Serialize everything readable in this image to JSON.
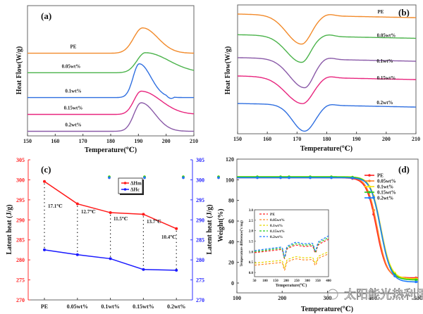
{
  "chart_data": [
    {
      "panel": "(a)",
      "type": "line",
      "title": "",
      "xlabel": "Temperature(℃)",
      "ylabel": "Heat Flow(W/g)",
      "xlim": [
        150,
        210
      ],
      "xticks": [
        150,
        160,
        170,
        180,
        190,
        200,
        210
      ],
      "series": [
        {
          "name": "PE",
          "color": "#f28a2a",
          "baseline": 0.88,
          "peaks": [
            {
              "x": 191.5,
              "h": 0.12,
              "wl": 3.2,
              "wr": 5.5
            }
          ]
        },
        {
          "name": "0.05wt%",
          "color": "#4bb34b",
          "baseline": 0.66,
          "peaks": [
            {
              "x": 192.5,
              "h": 0.095,
              "wl": 3.0,
              "wr": 8.5
            }
          ]
        },
        {
          "name": "0.1wt%",
          "color": "#2f6fe0",
          "baseline": 0.38,
          "peaks": [
            {
              "x": 190.3,
              "h": 0.16,
              "wl": 2.2,
              "wr": 4.2
            }
          ]
        },
        {
          "name": "0.15wt%",
          "color": "#e8257e",
          "baseline": 0.19,
          "peaks": [
            {
              "x": 191.0,
              "h": 0.11,
              "wl": 2.6,
              "wr": 7.0
            }
          ]
        },
        {
          "name": "0.2wt%",
          "color": "#8a5aa8",
          "baseline": 0.0,
          "peaks": [
            {
              "x": 191.0,
              "h": 0.135,
              "wl": 2.6,
              "wr": 5.0
            }
          ]
        }
      ]
    },
    {
      "panel": "(b)",
      "type": "line",
      "title": "",
      "xlabel": "Temperature(℃)",
      "ylabel": "Heat Flow(W/g)",
      "xlim": [
        150,
        210
      ],
      "xticks": [
        150,
        160,
        170,
        180,
        190,
        200,
        210
      ],
      "series": [
        {
          "name": "PE",
          "color": "#f28a2a",
          "baseline": 1.0,
          "dip_x": 171.5,
          "depth": 0.24,
          "wl": 5.0,
          "wr": 3.3
        },
        {
          "name": "0.05wt%",
          "color": "#4bb34b",
          "baseline": 0.82,
          "dip_x": 171.5,
          "depth": 0.22,
          "wl": 5.0,
          "wr": 3.0
        },
        {
          "name": "0.1wt%",
          "color": "#8a5aa8",
          "baseline": 0.62,
          "dip_x": 172.5,
          "depth": 0.24,
          "wl": 5.0,
          "wr": 3.0
        },
        {
          "name": "0.15wt%",
          "color": "#e8257e",
          "baseline": 0.46,
          "dip_x": 171.8,
          "depth": 0.22,
          "wl": 5.5,
          "wr": 3.5
        },
        {
          "name": "0.2wt%",
          "color": "#2f6fe0",
          "baseline": 0.22,
          "dip_x": 172.5,
          "depth": 0.22,
          "wl": 4.0,
          "wr": 3.5
        }
      ]
    },
    {
      "panel": "(c)",
      "type": "line",
      "title": "",
      "xlabel": "",
      "ylabel": "Latent heat (J/g)",
      "ylabel_right": "Latent heat (J/g)",
      "categories": [
        "PE",
        "0.05wt%",
        "0.1wt%",
        "0.15wt%",
        "0.2wt%"
      ],
      "ylim": [
        270,
        305
      ],
      "yticks": [
        270,
        275,
        280,
        285,
        290,
        295,
        300,
        305
      ],
      "series": [
        {
          "name": "ΔHm",
          "color": "#ff1a1a",
          "values": [
            299.6,
            294.0,
            291.8,
            291.4,
            287.8
          ]
        },
        {
          "name": "ΔHc",
          "color": "#1a1aff",
          "values": [
            282.5,
            281.3,
            280.3,
            277.6,
            277.4
          ]
        }
      ],
      "annotations": [
        "17.1℃",
        "12.7℃",
        "11.5℃",
        "13.7℃",
        "10.4℃"
      ],
      "legend": "top-right"
    },
    {
      "panel": "(d)",
      "type": "line",
      "title": "",
      "xlabel": "Temperature(℃)",
      "ylabel": "Weight(%)",
      "xlim": [
        100,
        500
      ],
      "ylim": [
        -10,
        120
      ],
      "xticks": [
        100,
        200,
        300,
        400,
        500
      ],
      "yticks": [
        0,
        20,
        40,
        60,
        80,
        100,
        120
      ],
      "series": [
        {
          "name": "PE",
          "color": "#ff2020",
          "start": 102.0,
          "end": 5.0,
          "mid": 408
        },
        {
          "name": "0.05wt%",
          "color": "#ff7f27",
          "start": 102.5,
          "end": 4.0,
          "mid": 410
        },
        {
          "name": "0.1wt%",
          "color": "#f5e50a",
          "start": 103.0,
          "end": 4.0,
          "mid": 418
        },
        {
          "name": "0.15wt%",
          "color": "#22cc22",
          "start": 102.8,
          "end": 3.0,
          "mid": 417
        },
        {
          "name": "0.2wt%",
          "color": "#1e7bff",
          "start": 102.0,
          "end": 1.0,
          "mid": 418
        }
      ],
      "legend": "top-right",
      "inset": {
        "xlabel": "Temperature(℃)",
        "ylabel": "Temperature difference(ºc/mg)",
        "xlim": [
          50,
          400
        ],
        "ylim": [
          -0.2,
          3.0
        ],
        "xticks": [
          50,
          100,
          150,
          200,
          250,
          300,
          350,
          400
        ],
        "yticks": [
          0.0,
          0.5,
          1.0,
          1.5,
          2.0,
          2.5,
          3.0
        ],
        "series": [
          {
            "name": "PE",
            "color": "#ff2020",
            "offset": 0.95,
            "scale": 1.0
          },
          {
            "name": "0.05wt%",
            "color": "#ff8a2a",
            "offset": 0.35,
            "scale": 0.85
          },
          {
            "name": "0.1wt%",
            "color": "#e8d800",
            "offset": 0.45,
            "scale": 0.85
          },
          {
            "name": "0.15wt%",
            "color": "#22cc22",
            "offset": 1.0,
            "scale": 1.05
          },
          {
            "name": "0.2wt%",
            "color": "#1e7bff",
            "offset": 1.05,
            "scale": 1.1
          }
        ]
      }
    }
  ],
  "watermark": "太阳能光热利用"
}
